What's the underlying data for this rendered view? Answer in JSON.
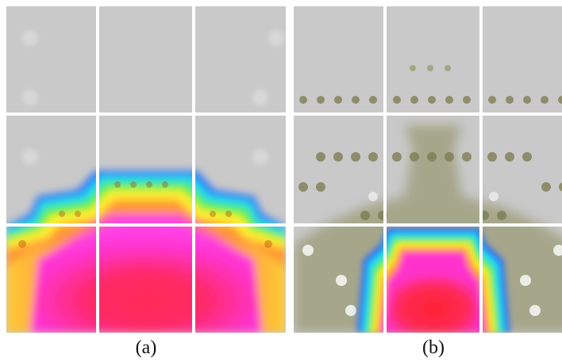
{
  "figure": {
    "panels": [
      {
        "id": "a",
        "caption": "(a)"
      },
      {
        "id": "b",
        "caption": "(b)"
      }
    ]
  },
  "colors": {
    "background_gray": "#c9c9c9",
    "grid_lines": "#ffffff",
    "olive_dots": "#7a7a4e",
    "magenta": "#ff33dd",
    "red": "#ff2a44",
    "orange": "#ff9933",
    "yellow": "#ffee33",
    "green": "#55ee44",
    "cyan": "#22ddee",
    "blue": "#2266ff"
  }
}
